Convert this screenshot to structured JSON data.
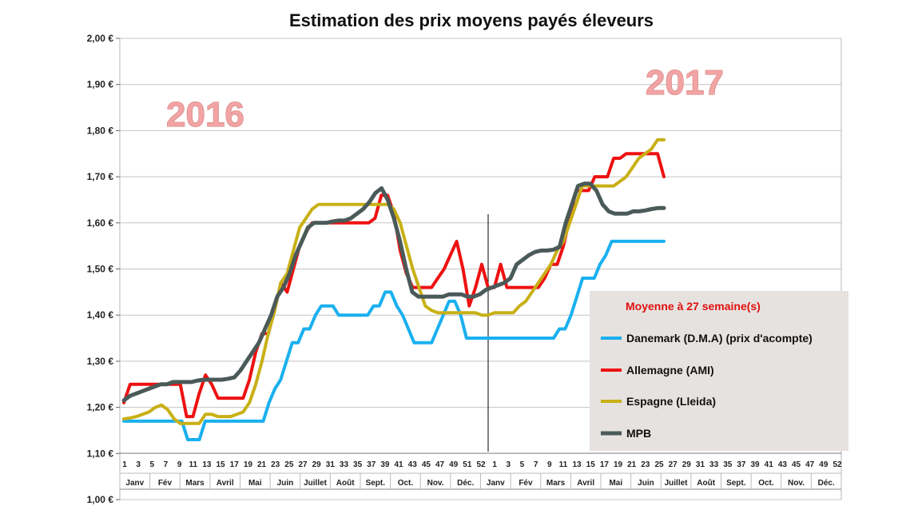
{
  "chart_data": {
    "type": "line",
    "title": "Estimation des prix moyens payés éleveurs",
    "ylim": [
      1.0,
      2.0
    ],
    "y_ticks": [
      "1,00 €",
      "1,10 €",
      "1,20 €",
      "1,30 €",
      "1,40 €",
      "1,50 €",
      "1,60 €",
      "1,70 €",
      "1,80 €",
      "1,90 €",
      "2,00 €"
    ],
    "x_ticks": [
      "1",
      "3",
      "5",
      "7",
      "9",
      "11",
      "13",
      "15",
      "17",
      "19",
      "21",
      "23",
      "25",
      "27",
      "29",
      "31",
      "33",
      "35",
      "37",
      "39",
      "41",
      "43",
      "45",
      "47",
      "49",
      "51",
      "52",
      "1",
      "3",
      "5",
      "7",
      "9",
      "11",
      "13",
      "15",
      "17",
      "19",
      "21",
      "23",
      "25",
      "27",
      "29",
      "31",
      "33",
      "35",
      "37",
      "39",
      "41",
      "43",
      "45",
      "47",
      "49",
      "52"
    ],
    "months": [
      "Janv",
      "Fév",
      "Mars",
      "Avril",
      "Mai",
      "Juin",
      "Juillet",
      "Août",
      "Sept.",
      "Oct.",
      "Nov.",
      "Déc.",
      "Janv",
      "Fév",
      "Mars",
      "Avril",
      "Mai",
      "Juin",
      "Juillet",
      "Août",
      "Sept.",
      "Oct.",
      "Nov.",
      "Déc."
    ],
    "year_labels": [
      "2016",
      "2017"
    ],
    "legend": {
      "title": "Moyenne à  27 semaine(s)",
      "placement": "bottom-right"
    },
    "series": [
      {
        "name": "Danemark (D.M.A) (prix d'acompte)",
        "color": "#1ab0f0",
        "values": [
          1.17,
          1.17,
          1.17,
          1.17,
          1.17,
          1.17,
          1.17,
          1.17,
          1.17,
          1.17,
          1.17,
          1.13,
          1.13,
          1.13,
          1.17,
          1.17,
          1.17,
          1.17,
          1.17,
          1.17,
          1.17,
          1.17,
          1.17,
          1.17,
          1.17,
          1.21,
          1.24,
          1.26,
          1.3,
          1.34,
          1.34,
          1.37,
          1.37,
          1.4,
          1.42,
          1.42,
          1.42,
          1.4,
          1.4,
          1.4,
          1.4,
          1.4,
          1.4,
          1.42,
          1.42,
          1.45,
          1.45,
          1.42,
          1.4,
          1.37,
          1.34,
          1.34,
          1.34,
          1.34,
          1.37,
          1.4,
          1.43,
          1.43,
          1.4,
          1.35,
          1.35,
          1.35,
          1.35,
          1.35,
          1.35,
          1.35,
          1.35,
          1.35,
          1.35,
          1.35,
          1.35,
          1.35,
          1.35,
          1.35,
          1.35,
          1.37,
          1.37,
          1.4,
          1.44,
          1.48,
          1.48,
          1.48,
          1.51,
          1.53,
          1.56,
          1.56,
          1.56,
          1.56,
          1.56,
          1.56,
          1.56,
          1.56,
          1.56,
          1.56
        ]
      },
      {
        "name": "Allemagne (AMI)",
        "color": "#ee1111",
        "values": [
          1.21,
          1.25,
          1.25,
          1.25,
          1.25,
          1.25,
          1.25,
          1.25,
          1.25,
          1.25,
          1.18,
          1.18,
          1.23,
          1.27,
          1.25,
          1.22,
          1.22,
          1.22,
          1.22,
          1.22,
          1.26,
          1.32,
          1.36,
          1.36,
          1.41,
          1.47,
          1.45,
          1.5,
          1.55,
          1.58,
          1.6,
          1.6,
          1.6,
          1.6,
          1.6,
          1.6,
          1.6,
          1.6,
          1.6,
          1.6,
          1.61,
          1.66,
          1.66,
          1.62,
          1.54,
          1.49,
          1.46,
          1.46,
          1.46,
          1.46,
          1.48,
          1.5,
          1.53,
          1.56,
          1.5,
          1.42,
          1.46,
          1.51,
          1.46,
          1.46,
          1.51,
          1.46,
          1.46,
          1.46,
          1.46,
          1.46,
          1.46,
          1.48,
          1.51,
          1.51,
          1.55,
          1.61,
          1.67,
          1.67,
          1.67,
          1.7,
          1.7,
          1.7,
          1.74,
          1.74,
          1.75,
          1.75,
          1.75,
          1.75,
          1.75,
          1.75,
          1.7
        ]
      },
      {
        "name": "Espagne (Lleida)",
        "color": "#c8b015",
        "values": [
          1.175,
          1.177,
          1.18,
          1.185,
          1.19,
          1.2,
          1.205,
          1.195,
          1.175,
          1.165,
          1.165,
          1.165,
          1.165,
          1.185,
          1.185,
          1.18,
          1.18,
          1.18,
          1.185,
          1.19,
          1.21,
          1.25,
          1.3,
          1.36,
          1.41,
          1.47,
          1.49,
          1.54,
          1.59,
          1.61,
          1.63,
          1.64,
          1.64,
          1.64,
          1.64,
          1.64,
          1.64,
          1.64,
          1.64,
          1.64,
          1.64,
          1.64,
          1.64,
          1.63,
          1.6,
          1.55,
          1.5,
          1.46,
          1.42,
          1.41,
          1.405,
          1.405,
          1.405,
          1.405,
          1.405,
          1.405,
          1.405,
          1.4,
          1.4,
          1.405,
          1.405,
          1.405,
          1.405,
          1.42,
          1.43,
          1.45,
          1.47,
          1.49,
          1.51,
          1.54,
          1.56,
          1.6,
          1.64,
          1.68,
          1.68,
          1.68,
          1.68,
          1.68,
          1.68,
          1.69,
          1.7,
          1.72,
          1.74,
          1.75,
          1.76,
          1.78,
          1.78
        ]
      },
      {
        "name": "MPB",
        "color": "#4a5a58",
        "values": [
          1.215,
          1.225,
          1.23,
          1.235,
          1.24,
          1.245,
          1.25,
          1.25,
          1.255,
          1.255,
          1.255,
          1.255,
          1.258,
          1.26,
          1.26,
          1.26,
          1.26,
          1.262,
          1.265,
          1.28,
          1.3,
          1.32,
          1.34,
          1.37,
          1.4,
          1.44,
          1.46,
          1.49,
          1.53,
          1.56,
          1.59,
          1.6,
          1.6,
          1.6,
          1.603,
          1.605,
          1.605,
          1.61,
          1.62,
          1.63,
          1.645,
          1.665,
          1.675,
          1.65,
          1.61,
          1.56,
          1.5,
          1.45,
          1.44,
          1.44,
          1.44,
          1.44,
          1.44,
          1.445,
          1.445,
          1.445,
          1.44,
          1.44,
          1.445,
          1.455,
          1.46,
          1.465,
          1.47,
          1.48,
          1.51,
          1.52,
          1.53,
          1.537,
          1.54,
          1.54,
          1.542,
          1.548,
          1.6,
          1.64,
          1.68,
          1.685,
          1.685,
          1.67,
          1.64,
          1.625,
          1.62,
          1.62,
          1.62,
          1.625,
          1.625,
          1.627,
          1.63,
          1.632,
          1.632
        ]
      }
    ]
  }
}
